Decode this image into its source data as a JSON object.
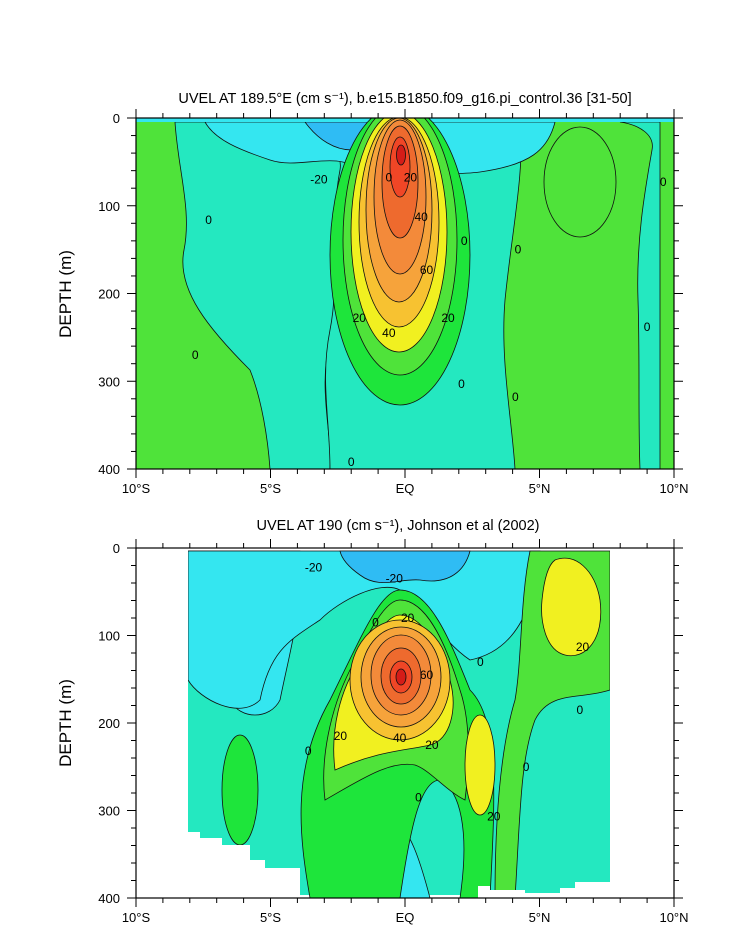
{
  "chart_data": [
    {
      "type": "heatmap",
      "title": "UVEL AT 189.5°E (cm s⁻¹), b.e15.B1850.f09_g16.pi_control.36 [31-50]",
      "ylabel": "DEPTH (m)",
      "xlim": [
        -10,
        10
      ],
      "ylim": [
        0,
        400
      ],
      "y_reversed": true,
      "x_ticks": [
        {
          "value": -10,
          "label": "10°S"
        },
        {
          "value": -5,
          "label": "5°S"
        },
        {
          "value": 0,
          "label": "EQ"
        },
        {
          "value": 5,
          "label": "5°N"
        },
        {
          "value": 10,
          "label": "10°N"
        }
      ],
      "y_ticks": [
        {
          "value": 0,
          "label": "0"
        },
        {
          "value": 100,
          "label": "100"
        },
        {
          "value": 200,
          "label": "200"
        },
        {
          "value": 300,
          "label": "300"
        },
        {
          "value": 400,
          "label": "400"
        }
      ],
      "contour_levels": [
        -30,
        -20,
        -10,
        0,
        10,
        20,
        30,
        40,
        50,
        60,
        70,
        80
      ],
      "contour_labels": [
        {
          "lat": -3.2,
          "depth": 70,
          "text": "-20"
        },
        {
          "lat": -0.6,
          "depth": 68,
          "text": "0"
        },
        {
          "lat": 0.2,
          "depth": 68,
          "text": "20"
        },
        {
          "lat": 0.6,
          "depth": 113,
          "text": "40"
        },
        {
          "lat": 0.8,
          "depth": 173,
          "text": "60"
        },
        {
          "lat": -1.7,
          "depth": 228,
          "text": "20"
        },
        {
          "lat": -0.6,
          "depth": 245,
          "text": "40"
        },
        {
          "lat": 1.6,
          "depth": 228,
          "text": "20"
        },
        {
          "lat": 2.2,
          "depth": 140,
          "text": "0"
        },
        {
          "lat": 4.2,
          "depth": 150,
          "text": "0"
        },
        {
          "lat": 9.6,
          "depth": 73,
          "text": "0"
        },
        {
          "lat": -7.3,
          "depth": 116,
          "text": "0"
        },
        {
          "lat": -7.8,
          "depth": 270,
          "text": "0"
        },
        {
          "lat": 2.1,
          "depth": 303,
          "text": "0"
        },
        {
          "lat": 4.1,
          "depth": 318,
          "text": "0"
        },
        {
          "lat": 9.0,
          "depth": 238,
          "text": "0"
        },
        {
          "lat": -2.0,
          "depth": 392,
          "text": "0"
        }
      ]
    },
    {
      "type": "heatmap",
      "title": "UVEL AT 190 (cm s⁻¹), Johnson et al (2002)",
      "ylabel": "DEPTH (m)",
      "xlim": [
        -10,
        10
      ],
      "ylim": [
        0,
        400
      ],
      "y_reversed": true,
      "x_ticks": [
        {
          "value": -10,
          "label": "10°S"
        },
        {
          "value": -5,
          "label": "5°S"
        },
        {
          "value": 0,
          "label": "EQ"
        },
        {
          "value": 5,
          "label": "5°N"
        },
        {
          "value": 10,
          "label": "10°N"
        }
      ],
      "y_ticks": [
        {
          "value": 0,
          "label": "0"
        },
        {
          "value": 100,
          "label": "100"
        },
        {
          "value": 200,
          "label": "200"
        },
        {
          "value": 300,
          "label": "300"
        },
        {
          "value": 400,
          "label": "400"
        }
      ],
      "data_xlim": [
        -8,
        8
      ],
      "contour_levels": [
        -30,
        -20,
        -10,
        0,
        10,
        20,
        30,
        40,
        50,
        60,
        70,
        80
      ],
      "contour_labels": [
        {
          "lat": -3.4,
          "depth": 22,
          "text": "-20"
        },
        {
          "lat": -0.4,
          "depth": 35,
          "text": "-20"
        },
        {
          "lat": -1.1,
          "depth": 85,
          "text": "0"
        },
        {
          "lat": 0.1,
          "depth": 80,
          "text": "20"
        },
        {
          "lat": 0.8,
          "depth": 145,
          "text": "60"
        },
        {
          "lat": -2.4,
          "depth": 215,
          "text": "20"
        },
        {
          "lat": -0.2,
          "depth": 217,
          "text": "40"
        },
        {
          "lat": 1.0,
          "depth": 225,
          "text": "20"
        },
        {
          "lat": 2.8,
          "depth": 130,
          "text": "0"
        },
        {
          "lat": 6.6,
          "depth": 113,
          "text": "20"
        },
        {
          "lat": 6.5,
          "depth": 185,
          "text": "0"
        },
        {
          "lat": 4.5,
          "depth": 250,
          "text": "0"
        },
        {
          "lat": 0.5,
          "depth": 285,
          "text": "0"
        },
        {
          "lat": -3.6,
          "depth": 232,
          "text": "0"
        },
        {
          "lat": 3.3,
          "depth": 307,
          "text": "20"
        }
      ]
    }
  ]
}
